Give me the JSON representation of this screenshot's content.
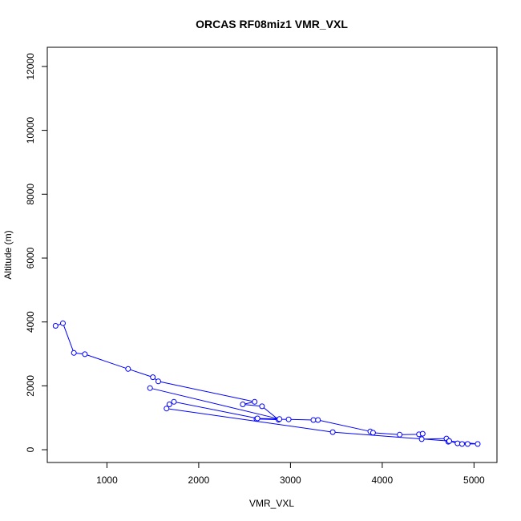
{
  "chart_data": {
    "type": "line",
    "title": "ORCAS RF08miz1 VMR_VXL",
    "xlabel": "VMR_VXL",
    "ylabel": "Altitude (m)",
    "xlim": [
      350,
      5250
    ],
    "ylim": [
      -400,
      12600
    ],
    "xticks": [
      1000,
      2000,
      3000,
      4000,
      5000
    ],
    "yticks": [
      0,
      2000,
      4000,
      6000,
      8000,
      10000,
      12000
    ],
    "grid": false,
    "series_color": "#0000ff",
    "markers": "open-circle",
    "series": [
      {
        "x": [
          440,
          520,
          640,
          760,
          1230,
          1500,
          1560,
          2610,
          2480,
          2690,
          2870,
          2630,
          2980,
          3250,
          3300,
          3870,
          3900,
          4190,
          4400,
          4440,
          4430,
          4700,
          4720,
          4730,
          4820,
          4870,
          4930,
          5040,
          4730,
          3460,
          1650,
          1680,
          1730,
          2640,
          2880,
          1470
        ],
        "y": [
          3880,
          3960,
          3030,
          2990,
          2530,
          2270,
          2140,
          1500,
          1420,
          1360,
          940,
          960,
          950,
          930,
          930,
          570,
          530,
          470,
          480,
          500,
          330,
          350,
          250,
          270,
          200,
          180,
          180,
          180,
          270,
          550,
          1290,
          1420,
          1500,
          980,
          960,
          1930
        ]
      }
    ]
  }
}
